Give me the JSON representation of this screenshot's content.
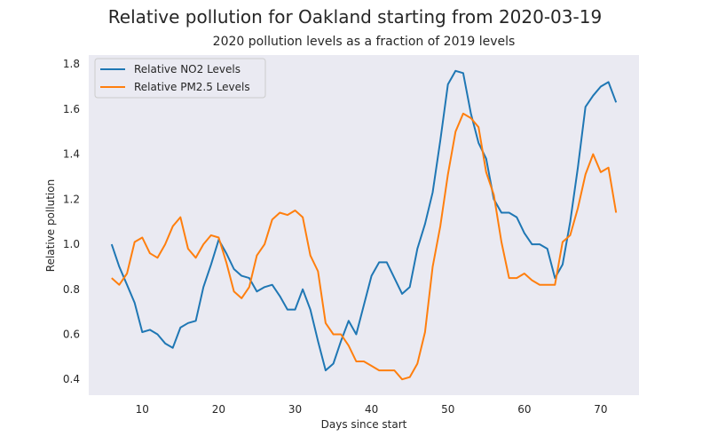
{
  "chart_data": {
    "type": "line",
    "title": "Relative pollution for Oakland starting from 2020-03-19",
    "subtitle": "2020 pollution levels as a fraction of 2019 levels",
    "xlabel": "Days since start",
    "ylabel": "Relative pollution",
    "xlim": [
      3,
      75
    ],
    "ylim": [
      0.33,
      1.84
    ],
    "xticks": [
      10,
      20,
      30,
      40,
      50,
      60,
      70
    ],
    "yticks": [
      0.4,
      0.6,
      0.8,
      1.0,
      1.2,
      1.4,
      1.6,
      1.8
    ],
    "xtick_labels": [
      "10",
      "20",
      "30",
      "40",
      "50",
      "60",
      "70"
    ],
    "ytick_labels": [
      "0.4",
      "0.6",
      "0.8",
      "1.0",
      "1.2",
      "1.4",
      "1.6",
      "1.8"
    ],
    "grid": false,
    "legend": "top-left",
    "background": "#eaeaf2",
    "x": [
      6,
      7,
      8,
      9,
      10,
      11,
      12,
      13,
      14,
      15,
      16,
      17,
      18,
      19,
      20,
      21,
      22,
      23,
      24,
      25,
      26,
      27,
      28,
      29,
      30,
      31,
      32,
      33,
      34,
      35,
      36,
      37,
      38,
      39,
      40,
      41,
      42,
      43,
      44,
      45,
      46,
      47,
      48,
      49,
      50,
      51,
      52,
      53,
      54,
      55,
      56,
      57,
      58,
      59,
      60,
      61,
      62,
      63,
      64,
      65,
      66,
      67,
      68,
      69,
      70,
      71,
      72
    ],
    "series": [
      {
        "name": "Relative NO2 Levels",
        "color": "#1f77b4",
        "values": [
          1.0,
          0.9,
          0.82,
          0.74,
          0.61,
          0.62,
          0.6,
          0.56,
          0.54,
          0.63,
          0.65,
          0.66,
          0.81,
          0.91,
          1.02,
          0.96,
          0.89,
          0.86,
          0.85,
          0.79,
          0.81,
          0.82,
          0.77,
          0.71,
          0.71,
          0.8,
          0.71,
          0.57,
          0.44,
          0.47,
          0.57,
          0.66,
          0.6,
          0.73,
          0.86,
          0.92,
          0.92,
          0.85,
          0.78,
          0.81,
          0.98,
          1.09,
          1.23,
          1.46,
          1.71,
          1.77,
          1.76,
          1.58,
          1.45,
          1.38,
          1.2,
          1.14,
          1.14,
          1.12,
          1.05,
          1.0,
          1.0,
          0.98,
          0.85,
          0.91,
          1.1,
          1.34,
          1.61,
          1.66,
          1.7,
          1.72,
          1.63
        ]
      },
      {
        "name": "Relative PM2.5 Levels",
        "color": "#ff7f0e",
        "values": [
          0.85,
          0.82,
          0.87,
          1.01,
          1.03,
          0.96,
          0.94,
          1.0,
          1.08,
          1.12,
          0.98,
          0.94,
          1.0,
          1.04,
          1.03,
          0.92,
          0.79,
          0.76,
          0.81,
          0.95,
          1.0,
          1.11,
          1.14,
          1.13,
          1.15,
          1.12,
          0.95,
          0.88,
          0.65,
          0.6,
          0.6,
          0.55,
          0.48,
          0.48,
          0.46,
          0.44,
          0.44,
          0.44,
          0.4,
          0.41,
          0.47,
          0.61,
          0.9,
          1.08,
          1.31,
          1.5,
          1.58,
          1.56,
          1.52,
          1.32,
          1.22,
          1.01,
          0.85,
          0.85,
          0.87,
          0.84,
          0.82,
          0.82,
          0.82,
          1.01,
          1.04,
          1.16,
          1.31,
          1.4,
          1.32,
          1.34,
          1.14
        ]
      }
    ]
  }
}
